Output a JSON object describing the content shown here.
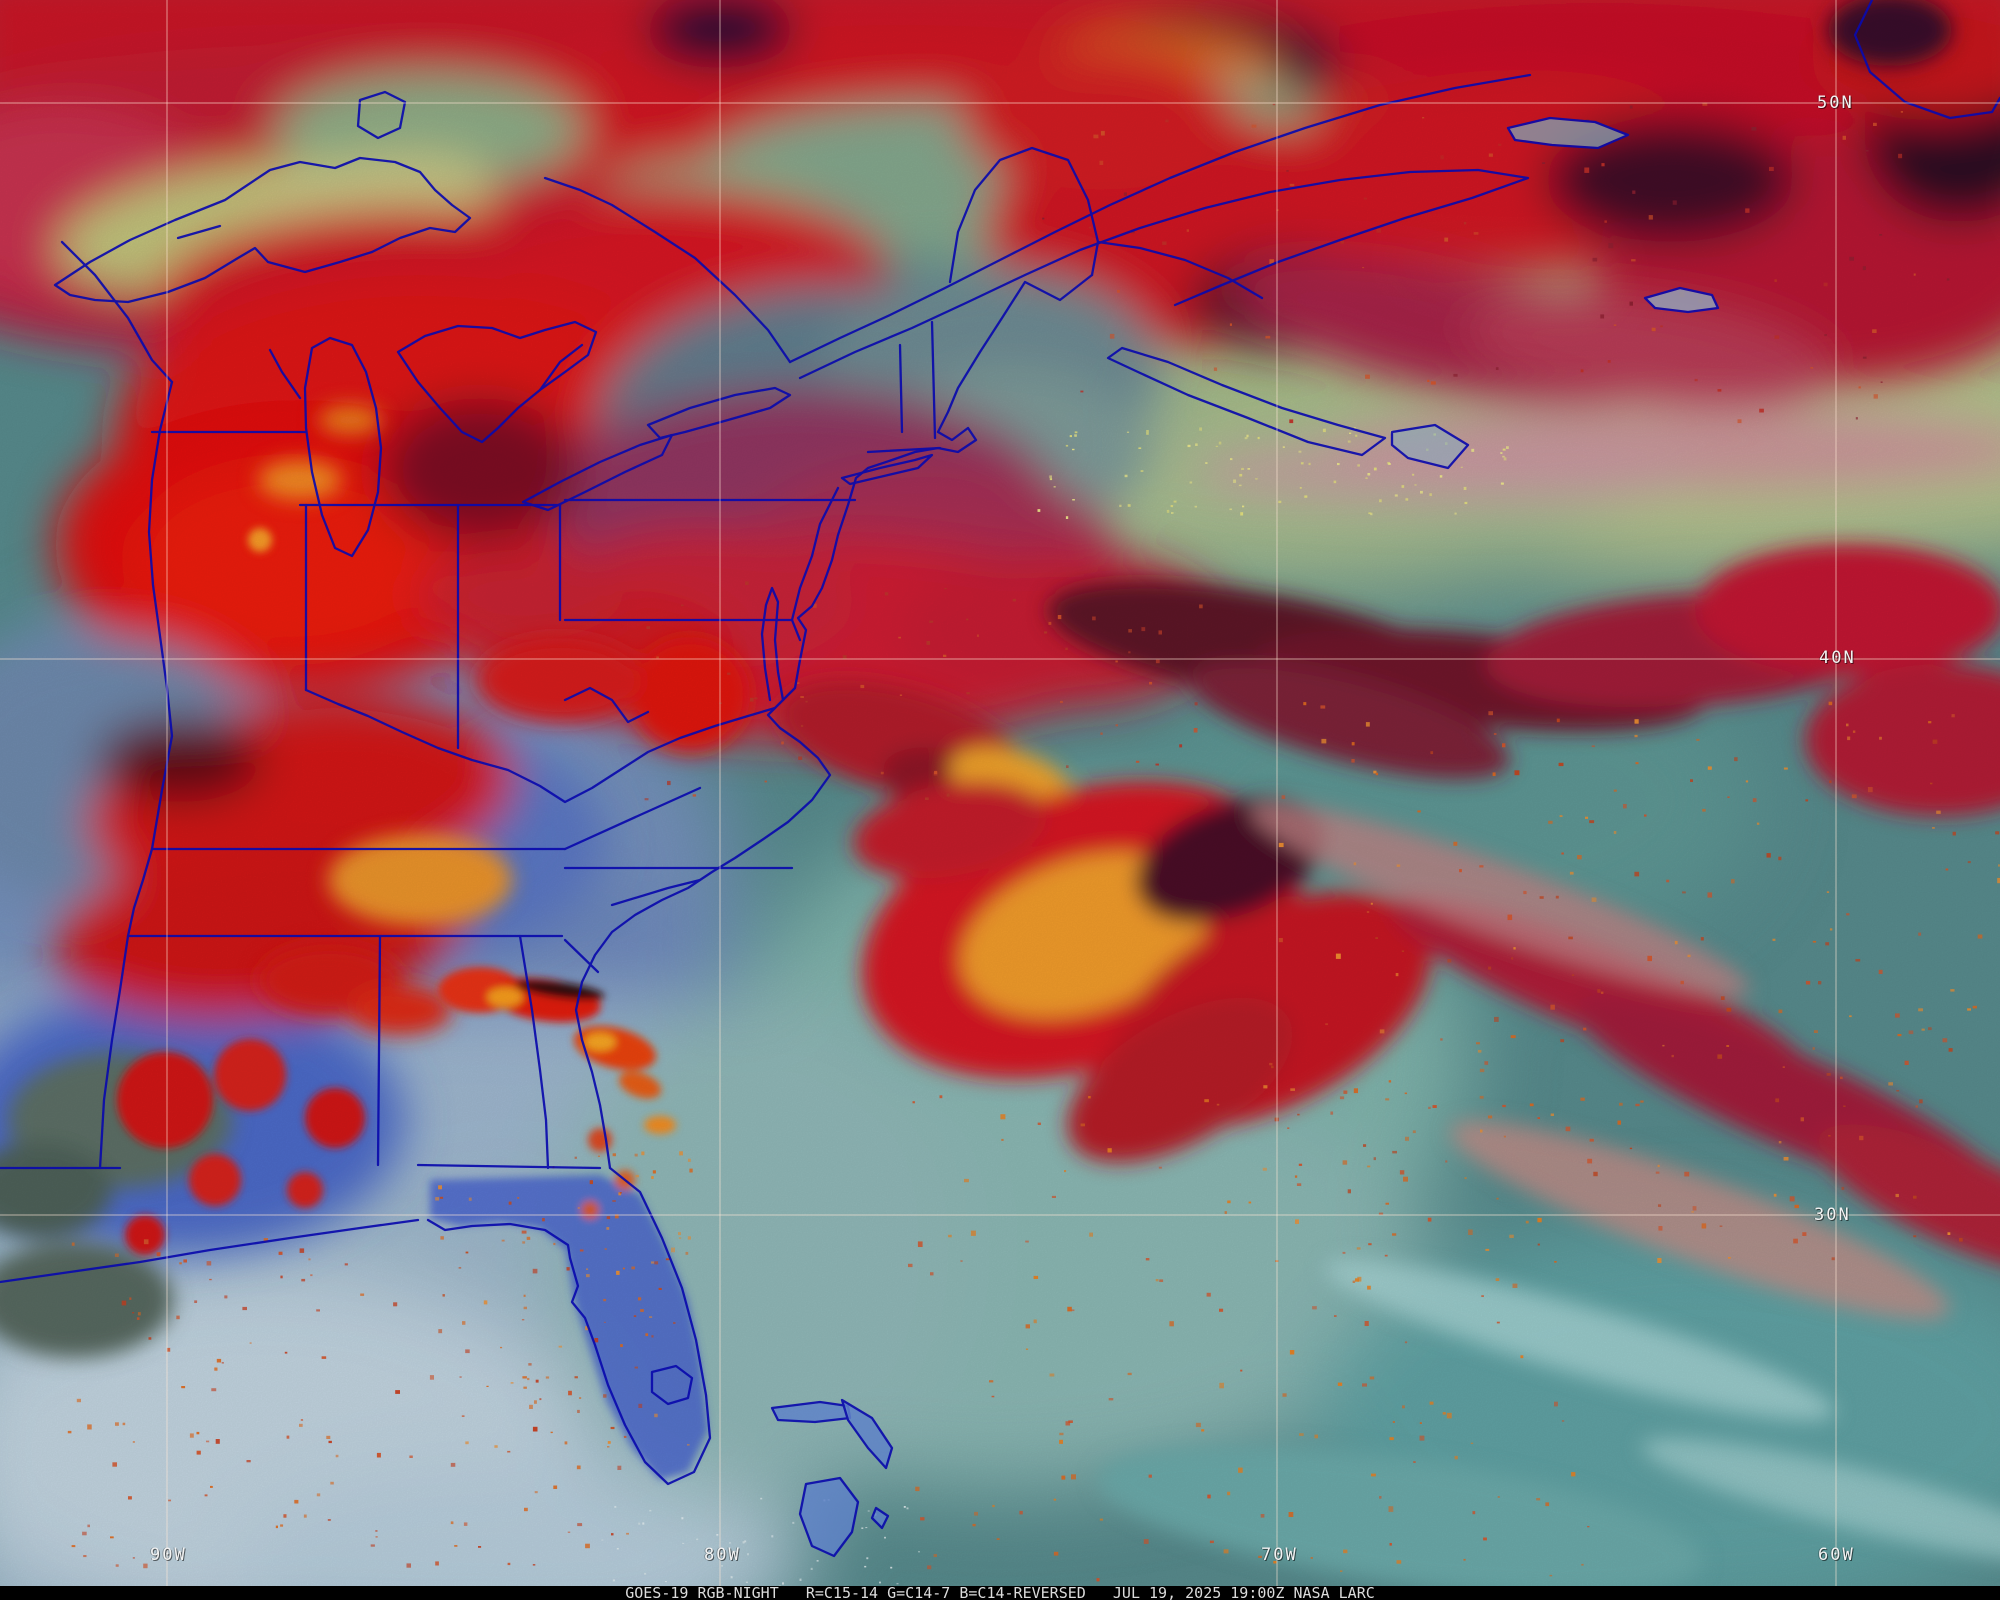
{
  "caption_bar": {
    "text": "GOES-19 RGB-NIGHT   R=C15-14 G=C14-7 B=C14-REVERSED   JUL 19, 2025 19:00Z NASA LARC",
    "background_color": "#000000",
    "text_color": "#dcdcdc"
  },
  "image_info": {
    "satellite": "GOES-19",
    "product": "RGB-NIGHT",
    "channel_recipe": {
      "red": "R=C15-14",
      "green": "G=C14-7",
      "blue": "B=C14-REVERSED"
    },
    "date": "JUL 19, 2025",
    "time": "19:00Z",
    "credit": "NASA LARC"
  },
  "graticule": {
    "meridian_labels": [
      {
        "label": "90W"
      },
      {
        "label": "80W"
      },
      {
        "label": "70W"
      },
      {
        "label": "60W"
      }
    ],
    "parallel_labels": [
      {
        "label": "50N"
      },
      {
        "label": "40N"
      },
      {
        "label": "30N"
      }
    ],
    "line_color": "rgba(255,232,214,0.5)",
    "label_color": "#f2f2f2"
  },
  "map": {
    "border_color": "#0a0aac",
    "palette": {
      "cold_cloud_red": "#d81520",
      "overshoot_orange": "#f09a2c",
      "dark_cirrus_maroon": "#4a1026",
      "clear_land_olive": "#a8bc86",
      "clear_ocean_teal": "#548a8c",
      "low_cloud_blue": "#7590bb",
      "fog_pale_blue": "#b5cada",
      "magenta_mid_cloud": "#9a3560"
    }
  }
}
